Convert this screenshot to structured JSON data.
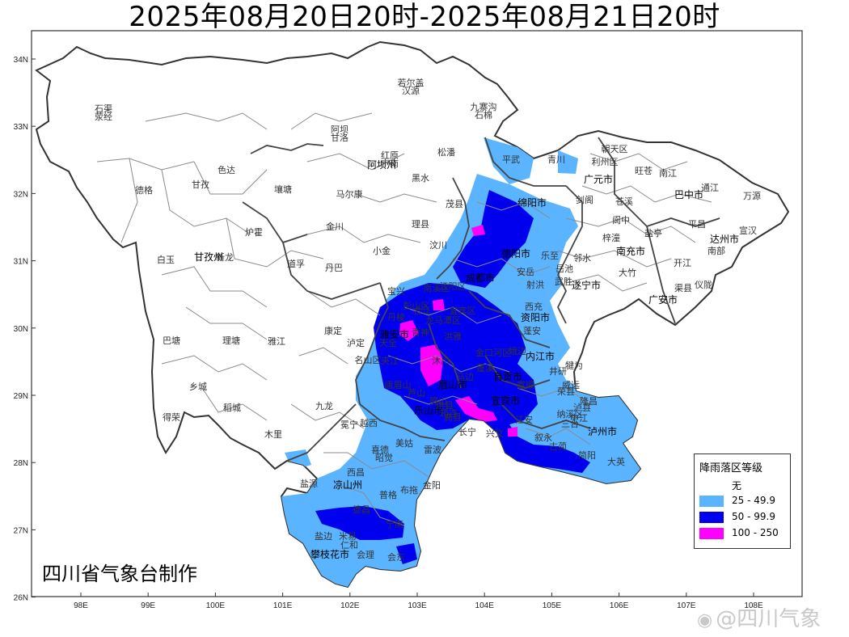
{
  "title": "2025年08月20日20时-2025年08月21日20时",
  "credit": "四川省气象台制作",
  "watermark": "@四川气象",
  "axes": {
    "lon": [
      "98E",
      "99E",
      "100E",
      "101E",
      "102E",
      "103E",
      "104E",
      "105E",
      "106E",
      "107E",
      "108E"
    ],
    "lat": [
      "34N",
      "33N",
      "32N",
      "31N",
      "30N",
      "29N",
      "28N",
      "27N",
      "26N"
    ]
  },
  "legend": {
    "title": "降雨落区等级",
    "items": [
      {
        "label": "无",
        "color": "#ffffff"
      },
      {
        "label": "25 - 49.9",
        "color": "#5ab4ff"
      },
      {
        "label": "50 - 99.9",
        "color": "#0000ee"
      },
      {
        "label": "100 - 250",
        "color": "#ff00ff"
      }
    ]
  },
  "places": {
    "prefectures": [
      "阿坝州",
      "甘孜州",
      "凉山州",
      "广元市",
      "巴中市",
      "达州市",
      "绵阳市",
      "德阳市",
      "成都市",
      "南充市",
      "遂宁市",
      "广安市",
      "资阳市",
      "内江市",
      "雅安市",
      "眉山市",
      "乐山市",
      "自贡市",
      "宜宾市",
      "泸州市",
      "攀枝花市"
    ],
    "counties": [
      "石渠",
      "若尔盖",
      "九寨沟",
      "阿坝",
      "红原",
      "松潘",
      "德格",
      "色达",
      "甘孜",
      "壤塘",
      "马尔康",
      "黑水",
      "茂县",
      "理县",
      "汶川",
      "金川",
      "小金",
      "炉霍",
      "白玉",
      "新龙",
      "道孚",
      "丹巴",
      "康定",
      "泸定",
      "宝兴",
      "天全",
      "巴塘",
      "理塘",
      "雅江",
      "乡城",
      "稻城",
      "九龙",
      "得荣",
      "木里",
      "冕宁",
      "越西",
      "盐源",
      "西昌",
      "昭觉",
      "喜德",
      "美姑",
      "雷波",
      "金阳",
      "布拖",
      "普格",
      "德昌",
      "会东",
      "会理",
      "米易",
      "盐边",
      "仁和",
      "宁南",
      "平武",
      "青川",
      "朝天区",
      "利州区",
      "旺苍",
      "南江",
      "通江",
      "万源",
      "剑阁",
      "苍溪",
      "阆中",
      "宣汉",
      "平昌",
      "梓潼",
      "盐亭",
      "南部",
      "仪陇",
      "开江",
      "渠县",
      "大竹",
      "邻水",
      "岳池",
      "武胜",
      "蓬安",
      "西充",
      "射洪",
      "蓬溪",
      "安岳",
      "乐至",
      "大英",
      "简阳",
      "中江",
      "三台",
      "古蔺",
      "叙永",
      "纳溪区",
      "江安",
      "兴文",
      "长宁",
      "高县",
      "筠连",
      "珙县",
      "屏山",
      "马边",
      "沐川",
      "峨边",
      "金口河区",
      "犍为",
      "井研",
      "威远",
      "荣县",
      "富顺",
      "隆昌",
      "泸县",
      "合江",
      "宜宾区",
      "南溪区",
      "江阳区",
      "龙马潭区",
      "洪雅",
      "丹棱",
      "彭山区",
      "青神",
      "夹江",
      "峨眉山",
      "芦山",
      "名山区",
      "荥经",
      "汉源",
      "石棉",
      "甘洛",
      "宁南"
    ]
  }
}
